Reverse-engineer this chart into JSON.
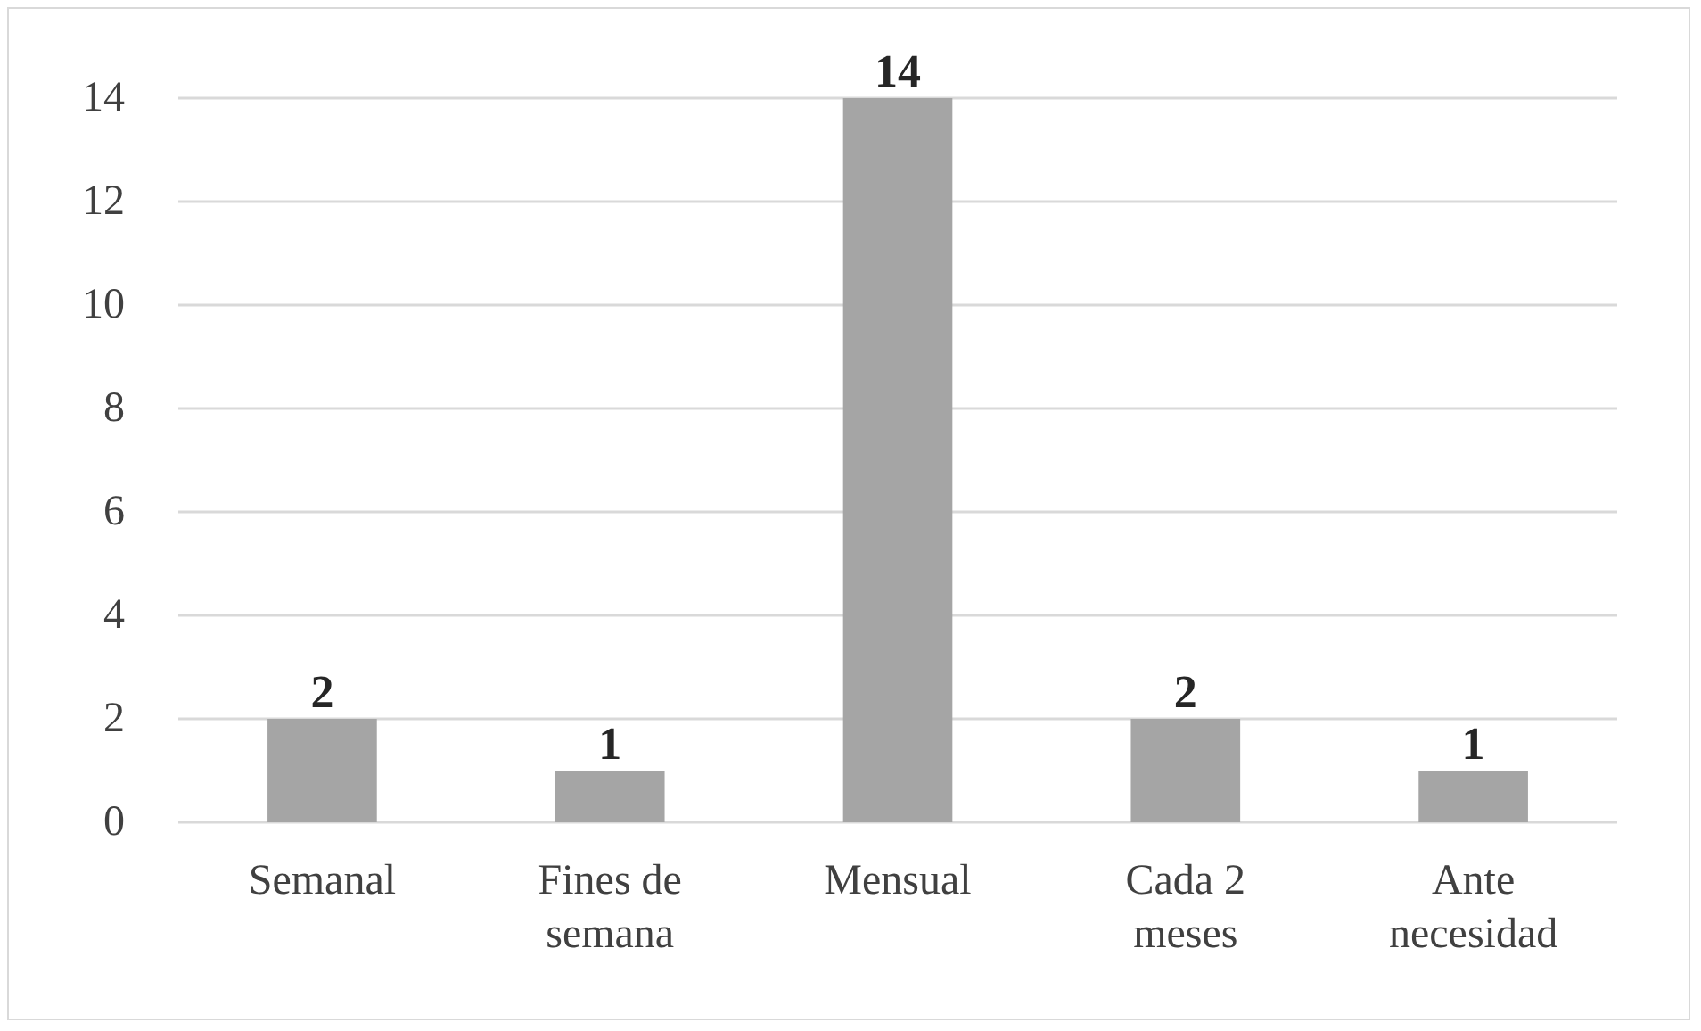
{
  "chart_data": {
    "type": "bar",
    "categories": [
      "Semanal",
      "Fines de\nsemana",
      "Mensual",
      "Cada 2\nmeses",
      "Ante\nnecesidad"
    ],
    "values": [
      2,
      1,
      14,
      2,
      1
    ],
    "color": "#a5a5a5",
    "ylim": [
      0,
      14
    ],
    "yticks": [
      0,
      2,
      4,
      6,
      8,
      10,
      12,
      14
    ],
    "grid": "y",
    "data_labels": true
  }
}
